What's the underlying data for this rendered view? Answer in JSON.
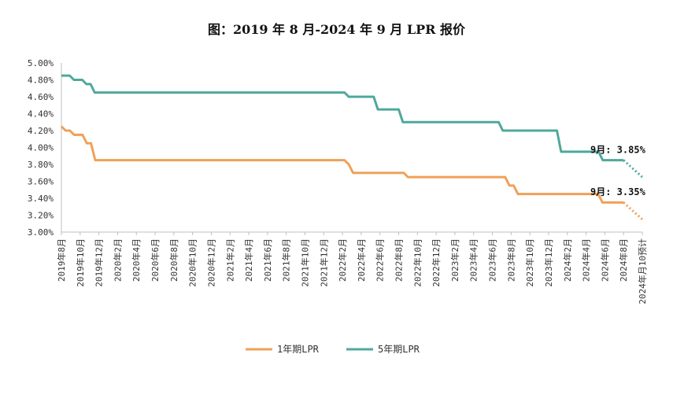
{
  "chart_data": {
    "type": "line",
    "title": "图：2019 年 8 月-2024 年 9 月 LPR 报价",
    "y_ticks": [
      "3.00%",
      "3.20%",
      "3.40%",
      "3.60%",
      "3.80%",
      "4.00%",
      "4.20%",
      "4.40%",
      "4.60%",
      "4.80%",
      "5.00%"
    ],
    "ylim": [
      3.0,
      5.0
    ],
    "x_labels": [
      "2019年8月",
      "2019年10月",
      "2019年12月",
      "2020年2月",
      "2020年4月",
      "2020年6月",
      "2020年8月",
      "2020年10月",
      "2020年12月",
      "2021年2月",
      "2021年4月",
      "2021年6月",
      "2021年8月",
      "2021年10月",
      "2021年12月",
      "2022年2月",
      "2022年4月",
      "2022年6月",
      "2022年8月",
      "2022年10月",
      "2022年12月",
      "2023年2月",
      "2023年4月",
      "2023年6月",
      "2023年8月",
      "2023年10月",
      "2023年12月",
      "2024年2月",
      "2024年4月",
      "2024年6月",
      "2024年8月",
      "2024年月10预计"
    ],
    "series": [
      {
        "name": "1年期LPR",
        "color": "#F0A058",
        "values": [
          4.25,
          4.2,
          4.2,
          4.15,
          4.15,
          4.15,
          4.05,
          4.05,
          3.85,
          3.85,
          3.85,
          3.85,
          3.85,
          3.85,
          3.85,
          3.85,
          3.85,
          3.85,
          3.85,
          3.85,
          3.85,
          3.85,
          3.85,
          3.85,
          3.85,
          3.85,
          3.85,
          3.85,
          3.85,
          3.85,
          3.85,
          3.85,
          3.85,
          3.85,
          3.85,
          3.85,
          3.85,
          3.85,
          3.85,
          3.85,
          3.85,
          3.85,
          3.85,
          3.85,
          3.85,
          3.85,
          3.85,
          3.85,
          3.85,
          3.85,
          3.85,
          3.85,
          3.85,
          3.85,
          3.85,
          3.85,
          3.85,
          3.85,
          3.85,
          3.85,
          3.85,
          3.85,
          3.85,
          3.85,
          3.85,
          3.85,
          3.85,
          3.85,
          3.8,
          3.7,
          3.7,
          3.7,
          3.7,
          3.7,
          3.7,
          3.7,
          3.7,
          3.7,
          3.7,
          3.7,
          3.7,
          3.7,
          3.65,
          3.65,
          3.65,
          3.65,
          3.65,
          3.65,
          3.65,
          3.65,
          3.65,
          3.65,
          3.65,
          3.65,
          3.65,
          3.65,
          3.65,
          3.65,
          3.65,
          3.65,
          3.65,
          3.65,
          3.65,
          3.65,
          3.65,
          3.65,
          3.55,
          3.55,
          3.45,
          3.45,
          3.45,
          3.45,
          3.45,
          3.45,
          3.45,
          3.45,
          3.45,
          3.45,
          3.45,
          3.45,
          3.45,
          3.45,
          3.45,
          3.45,
          3.45,
          3.45,
          3.45,
          3.45,
          3.35,
          3.35,
          3.35,
          3.35,
          3.35,
          3.35
        ],
        "forecast": [
          3.35,
          3.15
        ]
      },
      {
        "name": "5年期LPR",
        "color": "#4FA89C",
        "values": [
          4.85,
          4.85,
          4.85,
          4.8,
          4.8,
          4.8,
          4.75,
          4.75,
          4.65,
          4.65,
          4.65,
          4.65,
          4.65,
          4.65,
          4.65,
          4.65,
          4.65,
          4.65,
          4.65,
          4.65,
          4.65,
          4.65,
          4.65,
          4.65,
          4.65,
          4.65,
          4.65,
          4.65,
          4.65,
          4.65,
          4.65,
          4.65,
          4.65,
          4.65,
          4.65,
          4.65,
          4.65,
          4.65,
          4.65,
          4.65,
          4.65,
          4.65,
          4.65,
          4.65,
          4.65,
          4.65,
          4.65,
          4.65,
          4.65,
          4.65,
          4.65,
          4.65,
          4.65,
          4.65,
          4.65,
          4.65,
          4.65,
          4.65,
          4.65,
          4.65,
          4.65,
          4.65,
          4.65,
          4.65,
          4.65,
          4.65,
          4.65,
          4.65,
          4.65,
          4.6,
          4.6,
          4.6,
          4.6,
          4.6,
          4.6,
          4.6,
          4.45,
          4.45,
          4.45,
          4.45,
          4.45,
          4.45,
          4.3,
          4.3,
          4.3,
          4.3,
          4.3,
          4.3,
          4.3,
          4.3,
          4.3,
          4.3,
          4.3,
          4.3,
          4.3,
          4.3,
          4.3,
          4.3,
          4.3,
          4.3,
          4.3,
          4.3,
          4.3,
          4.3,
          4.3,
          4.3,
          4.2,
          4.2,
          4.2,
          4.2,
          4.2,
          4.2,
          4.2,
          4.2,
          4.2,
          4.2,
          4.2,
          4.2,
          4.2,
          4.2,
          3.95,
          3.95,
          3.95,
          3.95,
          3.95,
          3.95,
          3.95,
          3.95,
          3.95,
          3.95,
          3.85,
          3.85,
          3.85,
          3.85,
          3.85,
          3.85
        ],
        "forecast": [
          3.85,
          3.65
        ]
      }
    ],
    "annotations": [
      {
        "text": "9月: 3.85%",
        "series": "5年期LPR",
        "value": 3.9
      },
      {
        "text": "9月: 3.35%",
        "series": "1年期LPR",
        "value": 3.4
      }
    ],
    "legend": {
      "position": "bottom",
      "items": [
        "1年期LPR",
        "5年期LPR"
      ]
    },
    "grid": false
  }
}
